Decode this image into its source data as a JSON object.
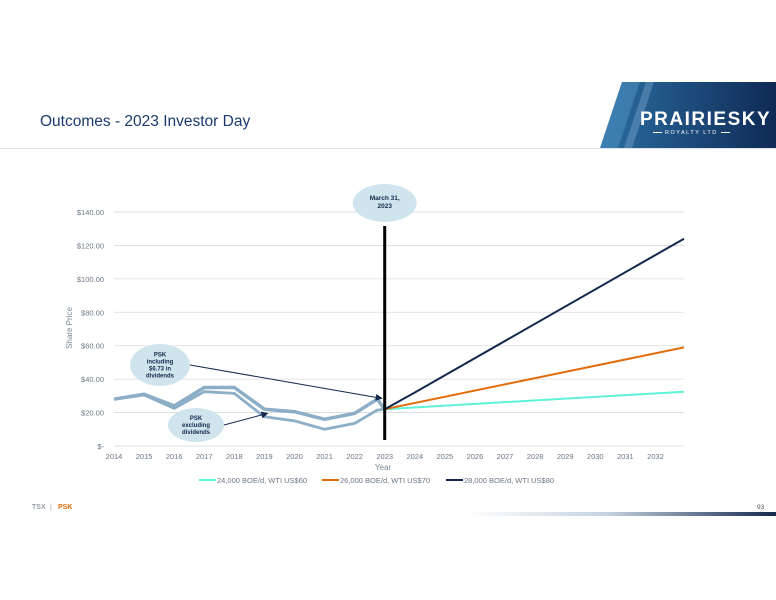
{
  "slide": {
    "title": "Outcomes - 2023 Investor Day",
    "logo_name": "PRAIRIESKY",
    "logo_sub": "ROYALTY LTD",
    "footer_tsx": "TSX",
    "footer_sep": "|",
    "footer_ticker": "PSK",
    "page_number": "93"
  },
  "colors": {
    "navy": "#13284d",
    "orange": "#e36c0a",
    "aqua": "#5ef2d6",
    "historical": "#8caec6",
    "callout_fill": "#cfe4ec",
    "title_blue": "#1d3a6e"
  },
  "chart_data": {
    "type": "line",
    "xlabel": "Year",
    "ylabel": "Share Price",
    "ylim": [
      0,
      140
    ],
    "yticks": [
      0,
      20,
      40,
      60,
      80,
      100,
      120,
      140
    ],
    "ytick_labels": [
      "$-",
      "$20.00",
      "$40.00",
      "$60.00",
      "$80.00",
      "$100.00",
      "$120.00",
      "$140.00"
    ],
    "x_categories": [
      "2014",
      "2015",
      "2016",
      "2017",
      "2018",
      "2019",
      "2020",
      "2021",
      "2022",
      "2023",
      "2024",
      "2025",
      "2026",
      "2027",
      "2028",
      "2029",
      "2030",
      "2031",
      "2032"
    ],
    "xlim": [
      2014,
      2032.95
    ],
    "grid": true,
    "legend_position": "bottom",
    "historical_series": [
      {
        "name": "PSK including $6.73 in dividends",
        "x": [
          2014,
          2015,
          2016,
          2017,
          2018,
          2019,
          2020,
          2021,
          2022,
          2022.75,
          2023
        ],
        "y": [
          28,
          31,
          24,
          35,
          35,
          22,
          20.5,
          16,
          19.5,
          28,
          22
        ]
      },
      {
        "name": "PSK excluding dividends",
        "x": [
          2014,
          2015,
          2016,
          2017,
          2018,
          2019,
          2020,
          2021,
          2022,
          2022.75,
          2023
        ],
        "y": [
          28,
          30.5,
          22.5,
          32.5,
          31.5,
          17.5,
          15,
          10,
          13.5,
          21.5,
          22
        ]
      }
    ],
    "series": [
      {
        "name": "24,000 BOE/d, WTI US$60",
        "color": "#5ef2d6",
        "x": [
          2023,
          2032.95
        ],
        "y": [
          22,
          32.5
        ]
      },
      {
        "name": "26,000 BOE/d, WTI US$70",
        "color": "#e36c0a",
        "x": [
          2023,
          2032.95
        ],
        "y": [
          22,
          59
        ]
      },
      {
        "name": "28,000 BOE/d, WTI US$80",
        "color": "#13284d",
        "x": [
          2023,
          2024,
          2032.95
        ],
        "y": [
          22,
          32,
          124
        ]
      }
    ],
    "marker": {
      "x": 2023,
      "label": "March 31, 2023"
    },
    "annotations": [
      {
        "id": "including",
        "text": "PSK including $6.73 in dividends",
        "points_to": {
          "x": 2022.9,
          "y": 28.5
        }
      },
      {
        "id": "excluding",
        "text": "PSK excluding dividends",
        "points_to": {
          "x": 2019.1,
          "y": 19.5
        }
      }
    ]
  }
}
